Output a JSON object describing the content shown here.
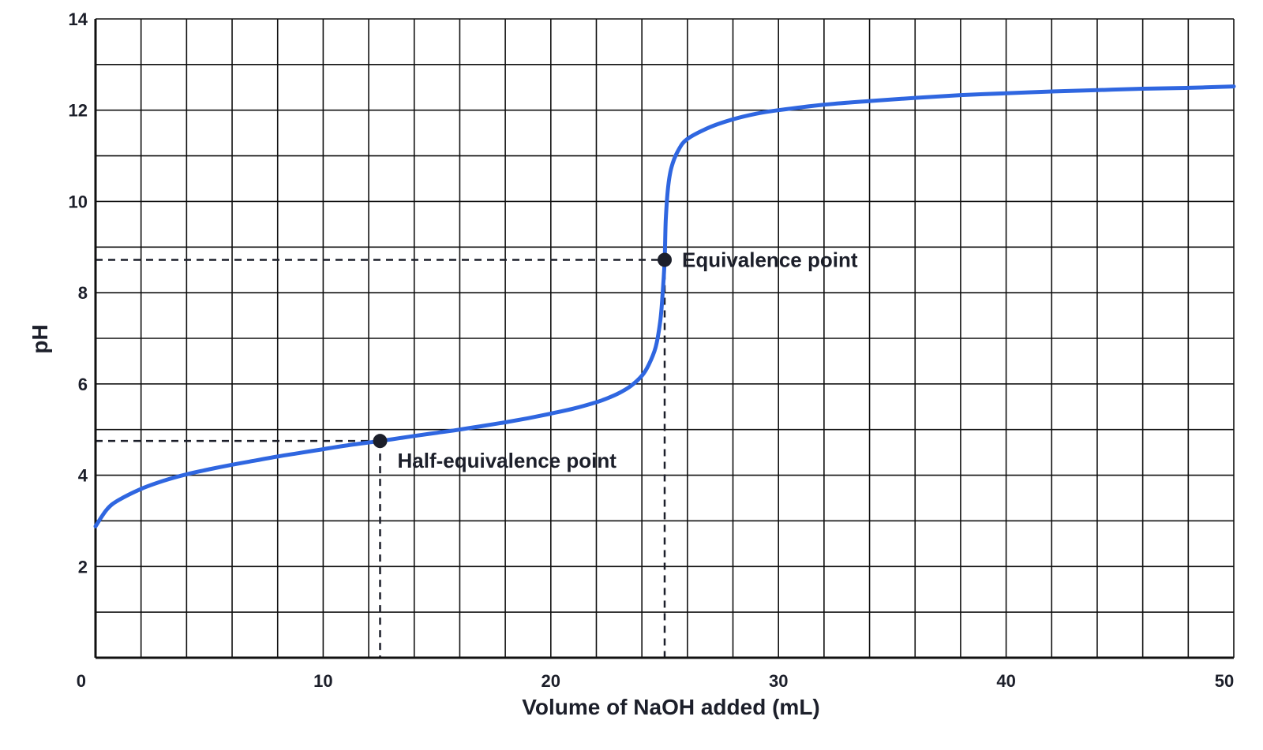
{
  "chart_data": {
    "type": "line",
    "title": "",
    "xlabel": "Volume of NaOH added (mL)",
    "ylabel": "pH",
    "xlim": [
      0,
      50
    ],
    "ylim": [
      0,
      14
    ],
    "xticks": [
      0,
      10,
      20,
      30,
      40,
      50
    ],
    "yticks": [
      2,
      4,
      6,
      8,
      10,
      12,
      14
    ],
    "x_gridlines": [
      0,
      2,
      4,
      6,
      8,
      10,
      12,
      14,
      16,
      18,
      20,
      22,
      24,
      26,
      28,
      30,
      32,
      34,
      36,
      38,
      40,
      42,
      44,
      46,
      48,
      50
    ],
    "y_gridlines": [
      0,
      1,
      2,
      3,
      4,
      5,
      6,
      7,
      8,
      9,
      10,
      11,
      12,
      13,
      14
    ],
    "grid": true,
    "series": [
      {
        "color": "#2f66e0",
        "points": [
          [
            0,
            2.88
          ],
          [
            0.5,
            3.25
          ],
          [
            1,
            3.45
          ],
          [
            2,
            3.7
          ],
          [
            3,
            3.88
          ],
          [
            4,
            4.02
          ],
          [
            5,
            4.13
          ],
          [
            6,
            4.23
          ],
          [
            7,
            4.32
          ],
          [
            8,
            4.41
          ],
          [
            9,
            4.49
          ],
          [
            10,
            4.57
          ],
          [
            11,
            4.65
          ],
          [
            12.5,
            4.75
          ],
          [
            14,
            4.86
          ],
          [
            15,
            4.93
          ],
          [
            16,
            5.0
          ],
          [
            17,
            5.08
          ],
          [
            18,
            5.16
          ],
          [
            19,
            5.25
          ],
          [
            20,
            5.35
          ],
          [
            21,
            5.46
          ],
          [
            22,
            5.6
          ],
          [
            22.5,
            5.69
          ],
          [
            23,
            5.8
          ],
          [
            23.5,
            5.95
          ],
          [
            24,
            6.18
          ],
          [
            24.3,
            6.42
          ],
          [
            24.6,
            6.8
          ],
          [
            24.8,
            7.35
          ],
          [
            24.9,
            7.9
          ],
          [
            25,
            8.72
          ],
          [
            25.05,
            9.6
          ],
          [
            25.15,
            10.3
          ],
          [
            25.3,
            10.75
          ],
          [
            25.6,
            11.12
          ],
          [
            26,
            11.37
          ],
          [
            27,
            11.63
          ],
          [
            28,
            11.8
          ],
          [
            29,
            11.92
          ],
          [
            30,
            12.0
          ],
          [
            32,
            12.12
          ],
          [
            34,
            12.2
          ],
          [
            36,
            12.27
          ],
          [
            38,
            12.33
          ],
          [
            40,
            12.37
          ],
          [
            42,
            12.41
          ],
          [
            44,
            12.44
          ],
          [
            46,
            12.47
          ],
          [
            48,
            12.49
          ],
          [
            50,
            12.52
          ]
        ]
      }
    ],
    "annotations": [
      {
        "label": "Equivalence point",
        "x": 25,
        "y": 8.72
      },
      {
        "label": "Half-equivalence point",
        "x": 12.5,
        "y": 4.75
      }
    ],
    "colors": {
      "line": "#2f66e0",
      "grid": "#111111",
      "text": "#1c1f2a",
      "marker": "#1c1f2a"
    }
  }
}
